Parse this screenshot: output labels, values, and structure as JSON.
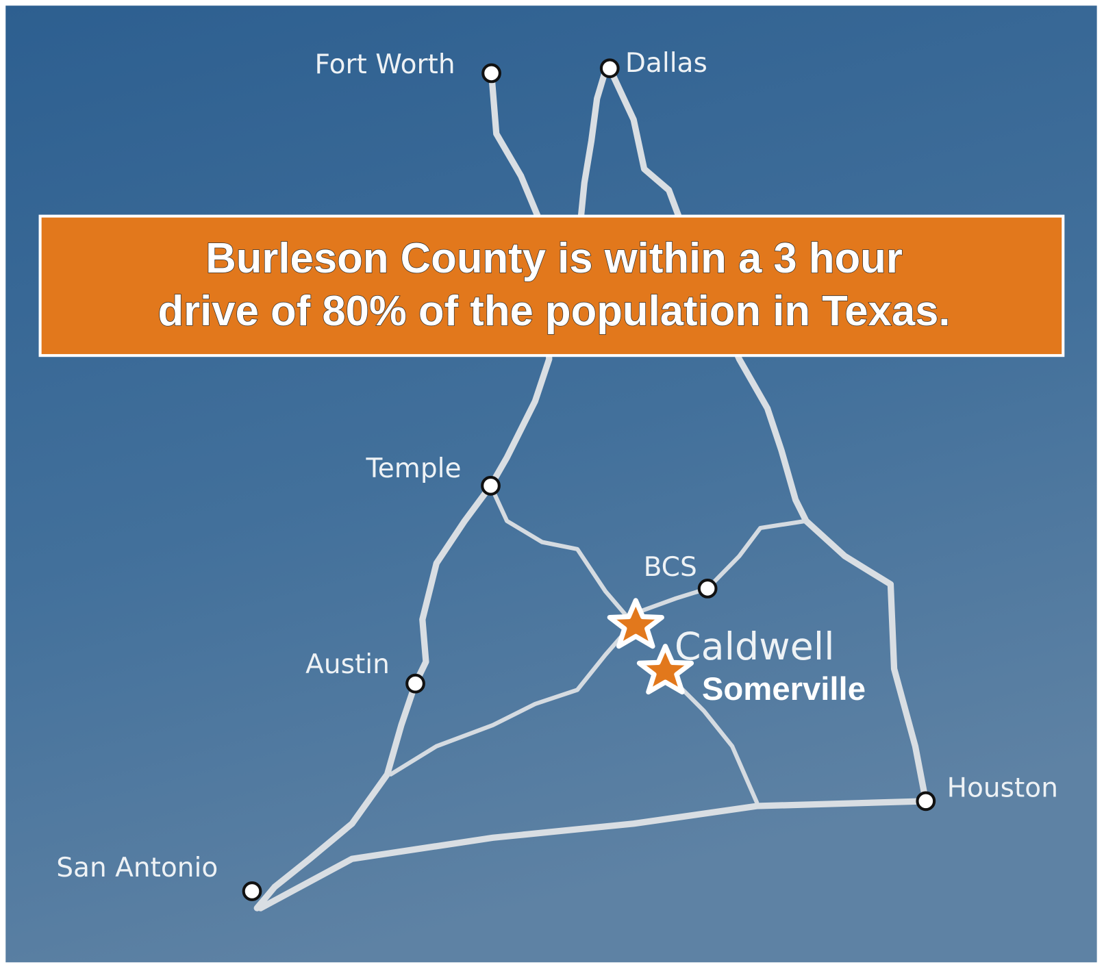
{
  "banner": {
    "line1": "Burleson County is within a 3 hour",
    "line2": "drive of 80% of the population in Texas.",
    "color": "#E2781C"
  },
  "cities": {
    "fort_worth": "Fort Worth",
    "dallas": "Dallas",
    "temple": "Temple",
    "bcs": "BCS",
    "austin": "Austin",
    "san_antonio": "San Antonio",
    "houston": "Houston",
    "caldwell": "Caldwell",
    "somerville": "Somerville"
  },
  "colors": {
    "background": "#3A6A96",
    "road": "#D9DEE3",
    "star": "#E2781C"
  }
}
